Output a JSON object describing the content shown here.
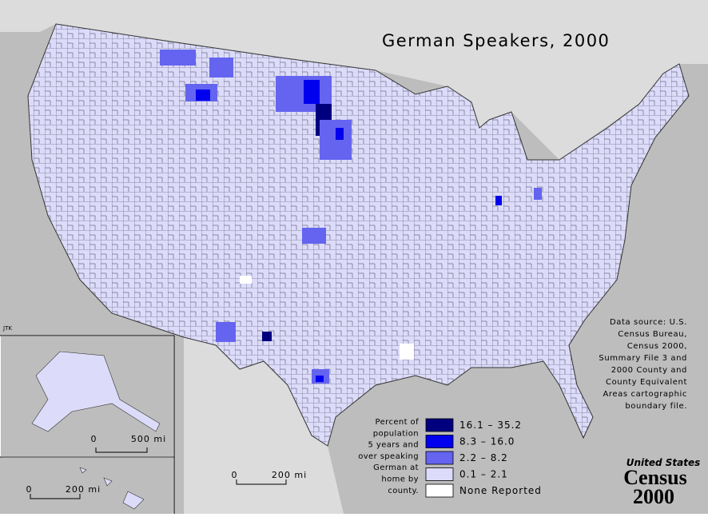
{
  "title": "German Speakers, 2000",
  "credit": "JTK",
  "legend": {
    "heading": [
      "Percent of",
      "population",
      "5 years and",
      "over speaking",
      "German at",
      "home by",
      "county."
    ],
    "items": [
      {
        "label": "16.1 – 35.2",
        "color": "#00007f"
      },
      {
        "label": "8.3 – 16.0",
        "color": "#0000ee"
      },
      {
        "label": "2.2 – 8.2",
        "color": "#6464f0"
      },
      {
        "label": "0.1 – 2.1",
        "color": "#dcdcfa"
      },
      {
        "label": "None Reported",
        "color": "#ffffff"
      }
    ]
  },
  "source": [
    "Data source:  U.S.",
    "Census Bureau,",
    "Census 2000,",
    "Summary File 3 and",
    "2000 County and",
    "County Equivalent",
    "Areas cartographic",
    "boundary file."
  ],
  "scales": [
    {
      "zero": "0",
      "label": "500 mi"
    },
    {
      "zero": "0",
      "label": "200 mi"
    },
    {
      "zero": "0",
      "label": "200 mi"
    }
  ],
  "logo": [
    "United States",
    "Census",
    "2000"
  ]
}
